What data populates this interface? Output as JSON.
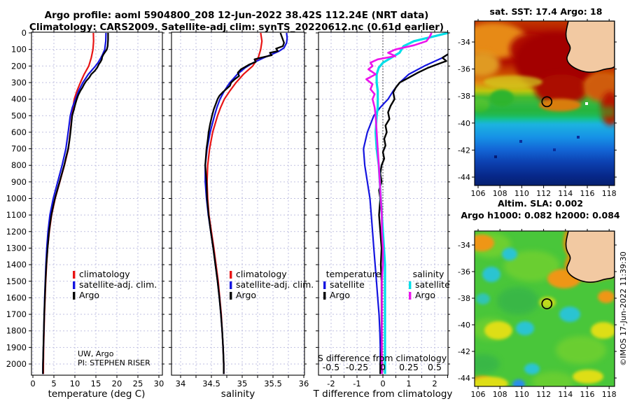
{
  "header": {
    "title_line1": "Argo profile: aoml 5904800_208 12-Jun-2022 38.42S 112.24E (NRT data)",
    "title_line2": "Climatology: CARS2009. Satellite-adj clim: synTS_20220612.nc (0.61d earlier)"
  },
  "watermark": "©IMOS 17-Jun-2022 11:39:30",
  "annotations": {
    "line1": "UW, Argo",
    "line2": "PI: STEPHEN RISER"
  },
  "legend_profile": {
    "climatology": "climatology",
    "satellite": "satellite-adj. clim.",
    "argo": "Argo"
  },
  "legend_difference": {
    "col_temperature": "temperature",
    "col_salinity": "salinity",
    "satellite": "satellite",
    "argo": "Argo"
  },
  "colors": {
    "climatology_red": "#e81414",
    "satellite_blue": "#1414e0",
    "argo_black": "#000000",
    "satellite_s_cyan": "#00dfe8",
    "argo_s_magenta": "#ec14ec",
    "grid": "#b9b9de",
    "land": "#f2c9a2",
    "sla_base_green": "#49c63a",
    "sst_warm_dark_red": "#ab0600",
    "sst_cold_dark_blue": "#062070"
  },
  "chart_data": [
    {
      "id": "temperature-profile",
      "type": "line",
      "xlabel": "temperature (deg C)",
      "xlim": [
        -0.33,
        30.83
      ],
      "ylim": [
        0,
        2000
      ],
      "xticks": [
        0,
        5,
        10,
        15,
        20,
        25,
        30
      ],
      "yticks": [
        0,
        100,
        200,
        300,
        400,
        500,
        600,
        700,
        800,
        900,
        1000,
        1100,
        1200,
        1300,
        1400,
        1500,
        1600,
        1700,
        1800,
        1900,
        2000
      ],
      "grid": true,
      "legend_position": "center-right",
      "series": [
        {
          "name": "climatology",
          "color": "#e81414",
          "width": 2.2,
          "depths": [
            0,
            50,
            100,
            150,
            200,
            250,
            300,
            350,
            400,
            450,
            500,
            600,
            700,
            800,
            900,
            1000,
            1100,
            1200,
            1300,
            1400,
            1500,
            1600,
            1700,
            1800,
            1900,
            2000,
            2060
          ],
          "values": [
            14.4,
            14.45,
            14.3,
            13.9,
            13.3,
            12.2,
            11.3,
            10.5,
            9.85,
            9.55,
            9.3,
            8.9,
            8.45,
            7.5,
            6.4,
            5.3,
            4.45,
            3.9,
            3.5,
            3.25,
            3.05,
            2.9,
            2.75,
            2.65,
            2.55,
            2.5,
            2.48
          ]
        },
        {
          "name": "satellite-adj. clim.",
          "color": "#1414e0",
          "width": 2.2,
          "depths": [
            0,
            50,
            100,
            130,
            150,
            180,
            200,
            250,
            300,
            350,
            400,
            450,
            500,
            600,
            700,
            800,
            900,
            1000,
            1100,
            1200,
            1300,
            1400,
            1500,
            1600,
            1700,
            1800,
            1900,
            2000,
            2060
          ],
          "values": [
            17.4,
            17.35,
            17.1,
            16.6,
            16.2,
            15.5,
            14.9,
            13.2,
            11.9,
            10.9,
            10.15,
            9.4,
            8.9,
            8.4,
            7.85,
            6.95,
            5.9,
            4.85,
            4.05,
            3.6,
            3.3,
            3.1,
            2.95,
            2.8,
            2.7,
            2.6,
            2.5,
            2.4,
            2.38
          ]
        },
        {
          "name": "Argo",
          "color": "#000000",
          "width": 2.3,
          "depths": [
            0,
            40,
            80,
            100,
            115,
            130,
            145,
            160,
            175,
            190,
            210,
            230,
            250,
            270,
            290,
            310,
            330,
            350,
            375,
            400,
            430,
            460,
            500,
            550,
            600,
            650,
            700,
            750,
            800,
            850,
            900,
            950,
            1000,
            1050,
            1100,
            1150,
            1200,
            1300,
            1400,
            1500,
            1600,
            1700,
            1800,
            1900,
            2000,
            2060
          ],
          "values": [
            17.9,
            17.9,
            17.8,
            17.6,
            17.2,
            16.8,
            16.5,
            16.4,
            16.1,
            15.7,
            15.3,
            14.7,
            13.9,
            13.4,
            12.7,
            12.2,
            11.8,
            11.3,
            10.8,
            10.45,
            10.1,
            9.8,
            9.35,
            9.15,
            8.95,
            8.7,
            8.4,
            7.9,
            7.45,
            6.9,
            6.35,
            5.8,
            5.25,
            4.8,
            4.4,
            4.1,
            3.85,
            3.5,
            3.2,
            3.0,
            2.85,
            2.7,
            2.6,
            2.5,
            2.4,
            2.38
          ]
        }
      ]
    },
    {
      "id": "salinity-profile",
      "type": "line",
      "xlabel": "salinity",
      "xlim": [
        33.85,
        36.01
      ],
      "ylim": [
        0,
        2000
      ],
      "xticks": [
        34,
        34.5,
        35,
        35.5,
        36
      ],
      "yticks_shared": true,
      "grid": true,
      "series": [
        {
          "name": "climatology",
          "color": "#e81414",
          "width": 2.2,
          "depths": [
            0,
            50,
            100,
            150,
            200,
            250,
            300,
            350,
            400,
            450,
            500,
            600,
            700,
            800,
            900,
            1000,
            1100,
            1200,
            1300,
            1400,
            1500,
            1600,
            1700,
            1800,
            1900,
            2000,
            2060
          ],
          "values": [
            35.3,
            35.32,
            35.3,
            35.26,
            35.17,
            35.02,
            34.9,
            34.8,
            34.71,
            34.65,
            34.6,
            34.52,
            34.47,
            34.44,
            34.43,
            34.44,
            34.46,
            34.5,
            34.54,
            34.575,
            34.61,
            34.635,
            34.66,
            34.675,
            34.69,
            34.7,
            34.7
          ]
        },
        {
          "name": "satellite-adj. clim.",
          "color": "#1414e0",
          "width": 2.2,
          "depths": [
            0,
            30,
            60,
            90,
            110,
            130,
            150,
            180,
            210,
            250,
            300,
            350,
            400,
            450,
            500,
            600,
            700,
            800,
            900,
            1000,
            1100,
            1200,
            1300,
            1400,
            1500,
            1600,
            1700,
            1800,
            1900,
            2000,
            2060
          ],
          "values": [
            35.72,
            35.73,
            35.72,
            35.68,
            35.6,
            35.48,
            35.35,
            35.18,
            35.05,
            34.92,
            34.8,
            34.71,
            34.64,
            34.59,
            34.55,
            34.48,
            34.43,
            34.4,
            34.4,
            34.42,
            34.45,
            34.49,
            34.53,
            34.565,
            34.6,
            34.63,
            34.655,
            34.675,
            34.69,
            34.7,
            34.7
          ]
        },
        {
          "name": "Argo",
          "color": "#000000",
          "width": 2.3,
          "depths": [
            0,
            30,
            60,
            80,
            95,
            110,
            120,
            135,
            150,
            160,
            175,
            190,
            205,
            220,
            240,
            260,
            280,
            300,
            320,
            340,
            360,
            380,
            400,
            430,
            460,
            500,
            550,
            600,
            650,
            700,
            750,
            800,
            850,
            900,
            1000,
            1100,
            1200,
            1300,
            1400,
            1500,
            1600,
            1700,
            1800,
            1900,
            2000,
            2060
          ],
          "values": [
            35.62,
            35.65,
            35.68,
            35.66,
            35.55,
            35.58,
            35.45,
            35.48,
            35.3,
            35.2,
            35.22,
            35.12,
            35.05,
            34.98,
            34.93,
            34.95,
            34.88,
            34.82,
            34.8,
            34.74,
            34.68,
            34.63,
            34.6,
            34.57,
            34.54,
            34.51,
            34.48,
            34.455,
            34.44,
            34.42,
            34.41,
            34.4,
            34.41,
            34.42,
            34.43,
            34.455,
            34.49,
            34.53,
            34.565,
            34.6,
            34.63,
            34.655,
            34.675,
            34.69,
            34.7,
            34.7
          ]
        }
      ]
    },
    {
      "id": "difference-profile",
      "type": "line",
      "xlabel": "T difference from climatology",
      "xlabel_secondary": "S difference from climatology",
      "xlim": [
        -2.5,
        2.51
      ],
      "ylim": [
        0,
        2000
      ],
      "xticks": [
        -2,
        -1,
        0,
        1,
        2
      ],
      "sticks": [
        -0.5,
        -0.25,
        0,
        0.25,
        0.5
      ],
      "s_scale": 4,
      "zero_line": true,
      "grid": true,
      "series": [
        {
          "name": "satellite T",
          "axis": "T",
          "color": "#1414e0",
          "width": 2.2,
          "depths": [
            0,
            50,
            100,
            150,
            200,
            250,
            300,
            350,
            400,
            450,
            500,
            600,
            700,
            800,
            900,
            1000,
            1100,
            1200,
            1300,
            1400,
            1500,
            1600,
            1700,
            1800,
            1900,
            2000,
            2060
          ],
          "values": [
            3.0,
            2.9,
            2.8,
            2.3,
            1.6,
            1.0,
            0.65,
            0.4,
            0.2,
            -0.1,
            -0.35,
            -0.6,
            -0.75,
            -0.7,
            -0.6,
            -0.5,
            -0.45,
            -0.4,
            -0.35,
            -0.3,
            -0.25,
            -0.2,
            -0.15,
            -0.12,
            -0.1,
            -0.1,
            -0.1
          ]
        },
        {
          "name": "Argo T",
          "axis": "T",
          "color": "#000000",
          "width": 2.4,
          "depths": [
            0,
            40,
            80,
            110,
            130,
            150,
            170,
            190,
            210,
            240,
            270,
            300,
            330,
            360,
            400,
            440,
            480,
            520,
            560,
            600,
            640,
            680,
            720,
            760,
            800,
            850,
            900,
            950,
            1000,
            1100,
            1200,
            1300,
            1400,
            1500,
            1600,
            1700,
            1800,
            1900,
            2000,
            2060
          ],
          "values": [
            3.5,
            3.45,
            3.3,
            2.9,
            2.5,
            2.3,
            2.45,
            2.1,
            1.75,
            1.35,
            1.0,
            0.65,
            0.5,
            0.4,
            0.45,
            0.3,
            0.2,
            0.25,
            0.1,
            0.15,
            0.05,
            0.1,
            0.0,
            0.05,
            -0.05,
            -0.1,
            -0.05,
            -0.15,
            -0.1,
            -0.15,
            -0.1,
            -0.05,
            -0.08,
            -0.05,
            -0.05,
            -0.05,
            -0.05,
            -0.05,
            -0.1,
            -0.1
          ]
        },
        {
          "name": "satellite S",
          "axis": "S",
          "color": "#00dfe8",
          "width": 3.2,
          "depths": [
            0,
            20,
            50,
            80,
            120,
            150,
            180,
            210,
            250,
            300,
            350,
            400,
            450,
            500,
            600,
            700,
            800,
            900,
            1000,
            1100,
            1200,
            1300,
            1400,
            1500,
            1600,
            1700,
            1800,
            1900,
            2000,
            2060
          ],
          "values": [
            0.63,
            0.5,
            0.3,
            0.2,
            0.16,
            0.08,
            0.0,
            -0.04,
            -0.06,
            -0.06,
            -0.05,
            -0.05,
            -0.05,
            -0.06,
            -0.07,
            -0.06,
            -0.04,
            -0.03,
            -0.02,
            -0.01,
            0.0,
            0.01,
            0.02,
            0.02,
            0.02,
            0.02,
            0.02,
            0.02,
            0.02,
            0.02
          ]
        },
        {
          "name": "Argo S",
          "axis": "S",
          "color": "#ec14ec",
          "width": 2.6,
          "depths": [
            0,
            25,
            50,
            75,
            100,
            120,
            140,
            160,
            180,
            200,
            220,
            250,
            280,
            310,
            340,
            370,
            400,
            450,
            500,
            600,
            700,
            800,
            900,
            1000,
            1100,
            1200,
            1300,
            1400,
            1500,
            1600,
            1700,
            1800,
            1900,
            2000,
            2060
          ],
          "values": [
            0.47,
            0.45,
            0.42,
            0.3,
            0.12,
            0.05,
            0.12,
            -0.05,
            -0.12,
            -0.1,
            -0.14,
            -0.07,
            -0.16,
            -0.1,
            -0.12,
            -0.08,
            -0.1,
            -0.08,
            -0.07,
            -0.06,
            -0.05,
            -0.04,
            -0.03,
            -0.02,
            -0.01,
            -0.01,
            0.0,
            0.0,
            -0.01,
            -0.01,
            -0.01,
            -0.01,
            -0.01,
            -0.01,
            -0.01
          ]
        }
      ]
    },
    {
      "id": "sst-map",
      "type": "heatmap",
      "title": "sat. SST: 17.4 Argo: 18",
      "xticks": [
        106,
        108,
        110,
        112,
        114,
        116,
        118
      ],
      "yticks": [
        -34,
        -36,
        -38,
        -40,
        -42,
        -44
      ],
      "lon_range": [
        105.7,
        118.5
      ],
      "lat_range": [
        -44.6,
        -32.45
      ],
      "marker": {
        "lon": 112.3,
        "lat": -38.42
      },
      "field": "sea surface temperature, warm (dark red ~20C) in north to cold (dark navy ~10C) in south, green front near -38 to -40, land in top-right corner"
    },
    {
      "id": "sla-map",
      "type": "heatmap",
      "title_line1": "Altim. SLA: 0.002",
      "title_line2": "Argo h1000: 0.082 h2000: 0.084",
      "xticks": [
        106,
        108,
        110,
        112,
        114,
        116,
        118
      ],
      "yticks": [
        -34,
        -36,
        -38,
        -40,
        -42,
        -44
      ],
      "lon_range": [
        105.7,
        118.5
      ],
      "lat_range": [
        -44.6,
        -32.95
      ],
      "marker": {
        "lon": 112.3,
        "lat": -38.42
      },
      "field": "sea level anomaly, mostly near-zero green with scattered positive orange/yellow and negative cyan eddies, orange rim along coast, land in top-right corner"
    }
  ]
}
